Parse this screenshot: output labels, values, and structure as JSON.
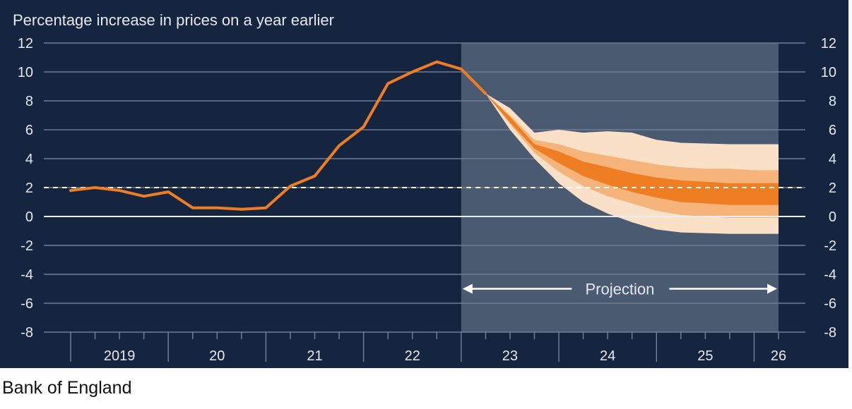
{
  "source": "Bank of England",
  "colors": {
    "background": "#16253f",
    "projection_shade": "#4a5a70",
    "line": "#ef7d22",
    "grid": "#6e7c94",
    "text": "#e6e9f0",
    "fan_outer": "#fbe0c8",
    "fan_mid": "#f6b37a",
    "fan_inner": "#ef7d22"
  },
  "chart_data": {
    "type": "line",
    "title": "Percentage increase in prices on a year earlier",
    "ylim": [
      -8,
      12
    ],
    "yticks": [
      "12",
      "10",
      "8",
      "6",
      "4",
      "2",
      "0",
      "-2",
      "-4",
      "-6",
      "-8"
    ],
    "xlim": [
      2019.0,
      2026.25
    ],
    "year_labels": [
      {
        "x": 2019.5,
        "label": "2019"
      },
      {
        "x": 2020.5,
        "label": "20"
      },
      {
        "x": 2021.5,
        "label": "21"
      },
      {
        "x": 2022.5,
        "label": "22"
      },
      {
        "x": 2023.5,
        "label": "23"
      },
      {
        "x": 2024.5,
        "label": "24"
      },
      {
        "x": 2025.5,
        "label": "25"
      },
      {
        "x": 2026.25,
        "label": "26"
      }
    ],
    "target_line": 2,
    "zero_line": 0,
    "projection": {
      "label": "Projection",
      "start": 2023.0,
      "end": 2026.25
    },
    "series": [
      {
        "values": [
          [
            2019.0,
            1.8
          ],
          [
            2019.25,
            2.0
          ],
          [
            2019.5,
            1.8
          ],
          [
            2019.75,
            1.4
          ],
          [
            2020.0,
            1.7
          ],
          [
            2020.25,
            0.6
          ],
          [
            2020.5,
            0.6
          ],
          [
            2020.75,
            0.5
          ],
          [
            2021.0,
            0.6
          ],
          [
            2021.25,
            2.1
          ],
          [
            2021.5,
            2.8
          ],
          [
            2021.75,
            4.9
          ],
          [
            2022.0,
            6.2
          ],
          [
            2022.25,
            9.2
          ],
          [
            2022.5,
            10.0
          ],
          [
            2022.75,
            10.7
          ],
          [
            2023.0,
            10.2
          ],
          [
            2023.25,
            8.5
          ]
        ]
      }
    ],
    "fan_bands": {
      "x": [
        2023.25,
        2023.5,
        2023.75,
        2024.0,
        2024.25,
        2024.5,
        2024.75,
        2025.0,
        2025.25,
        2025.5,
        2025.75,
        2026.0,
        2026.25
      ],
      "outer_upper": [
        8.5,
        7.5,
        5.8,
        6.0,
        5.8,
        5.9,
        5.8,
        5.3,
        5.1,
        5.05,
        5.0,
        5.0,
        5.0
      ],
      "outer_lower": [
        8.5,
        6.0,
        4.0,
        2.3,
        1.0,
        0.2,
        -0.4,
        -0.9,
        -1.1,
        -1.15,
        -1.2,
        -1.2,
        -1.2
      ],
      "mid_upper": [
        8.5,
        7.0,
        5.3,
        5.0,
        4.5,
        4.2,
        3.9,
        3.6,
        3.4,
        3.3,
        3.3,
        3.2,
        3.2
      ],
      "mid_lower": [
        8.5,
        6.4,
        4.4,
        3.1,
        2.1,
        1.4,
        0.9,
        0.4,
        0.1,
        0.0,
        -0.1,
        -0.1,
        -0.1
      ],
      "inner_upper": [
        8.5,
        6.9,
        5.0,
        4.5,
        3.8,
        3.4,
        3.0,
        2.7,
        2.5,
        2.4,
        2.3,
        2.3,
        2.3
      ],
      "inner_lower": [
        8.5,
        6.5,
        4.7,
        3.7,
        2.8,
        2.2,
        1.7,
        1.3,
        1.0,
        0.9,
        0.8,
        0.8,
        0.8
      ]
    }
  }
}
